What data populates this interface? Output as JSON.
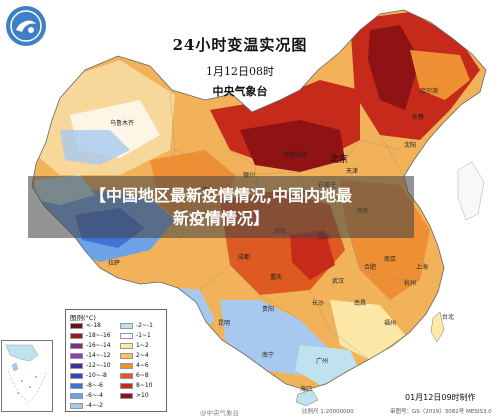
{
  "title": "24小时变温实况图",
  "date_label": "1月12日08时",
  "org_label": "中央气象台",
  "banner_lines": [
    "【中国地区最新疫情情况,中国内地最",
    "新疫情情况】"
  ],
  "legend": {
    "title": "图例(°C)",
    "items": [
      {
        "label": "<-18",
        "color": "#6e1018"
      },
      {
        "label": "-18~-16",
        "color": "#9c1a1e"
      },
      {
        "label": "-16~-14",
        "color": "#7a2f8c"
      },
      {
        "label": "-14~-12",
        "color": "#8e3fb0"
      },
      {
        "label": "-12~-10",
        "color": "#3d2f99"
      },
      {
        "label": "-10~-8",
        "color": "#2f48b8"
      },
      {
        "label": "-8~-6",
        "color": "#3f74d6"
      },
      {
        "label": "-6~-4",
        "color": "#6ea2e8"
      },
      {
        "label": "-4~-2",
        "color": "#a7c9f0"
      },
      {
        "label": "-2~-1",
        "color": "#bfe3ee"
      },
      {
        "label": "-1~1",
        "color": "#ffffff"
      },
      {
        "label": "1~2",
        "color": "#fde8a8"
      },
      {
        "label": "2~4",
        "color": "#f7c35f"
      },
      {
        "label": "4~6",
        "color": "#ee8f33"
      },
      {
        "label": "6~8",
        "color": "#df5a20"
      },
      {
        "label": "8~10",
        "color": "#c52a1a"
      },
      {
        "label": ">10",
        "color": "#8f1214"
      }
    ]
  },
  "cities": [
    {
      "name": "北京",
      "size": "big"
    },
    {
      "name": "乌鲁木齐",
      "size": "small"
    },
    {
      "name": "呼和浩特",
      "size": "small"
    },
    {
      "name": "银川",
      "size": "small"
    },
    {
      "name": "西宁",
      "size": "small"
    },
    {
      "name": "兰州",
      "size": "small"
    },
    {
      "name": "拉萨",
      "size": "small"
    },
    {
      "name": "成都",
      "size": "small"
    },
    {
      "name": "重庆",
      "size": "small"
    },
    {
      "name": "贵阳",
      "size": "small"
    },
    {
      "name": "昆明",
      "size": "small"
    },
    {
      "name": "南宁",
      "size": "small"
    },
    {
      "name": "广州",
      "size": "small"
    },
    {
      "name": "福州",
      "size": "small"
    },
    {
      "name": "杭州",
      "size": "small"
    },
    {
      "name": "上海",
      "size": "small"
    },
    {
      "name": "南京",
      "size": "small"
    },
    {
      "name": "合肥",
      "size": "small"
    },
    {
      "name": "武汉",
      "size": "small"
    },
    {
      "name": "长沙",
      "size": "small"
    },
    {
      "name": "南昌",
      "size": "small"
    },
    {
      "name": "郑州",
      "size": "small"
    },
    {
      "name": "济南",
      "size": "small"
    },
    {
      "name": "太原",
      "size": "small"
    },
    {
      "name": "石家庄",
      "size": "small"
    },
    {
      "name": "天津",
      "size": "small"
    },
    {
      "name": "西安",
      "size": "small"
    },
    {
      "name": "沈阳",
      "size": "small"
    },
    {
      "name": "长春",
      "size": "small"
    },
    {
      "name": "哈尔滨",
      "size": "small"
    },
    {
      "name": "台北",
      "size": "small"
    },
    {
      "name": "海口",
      "size": "small"
    }
  ],
  "footer": {
    "time": "01月12日09时制作",
    "watermark": "@中央气象台",
    "scale": "比例尺 1:20000000",
    "review": "审图号：GS（2019）3082号 MESIS3.0"
  },
  "colors": {
    "logo": "#3f7fc4",
    "water": "#ffffff",
    "border": "#777777"
  }
}
